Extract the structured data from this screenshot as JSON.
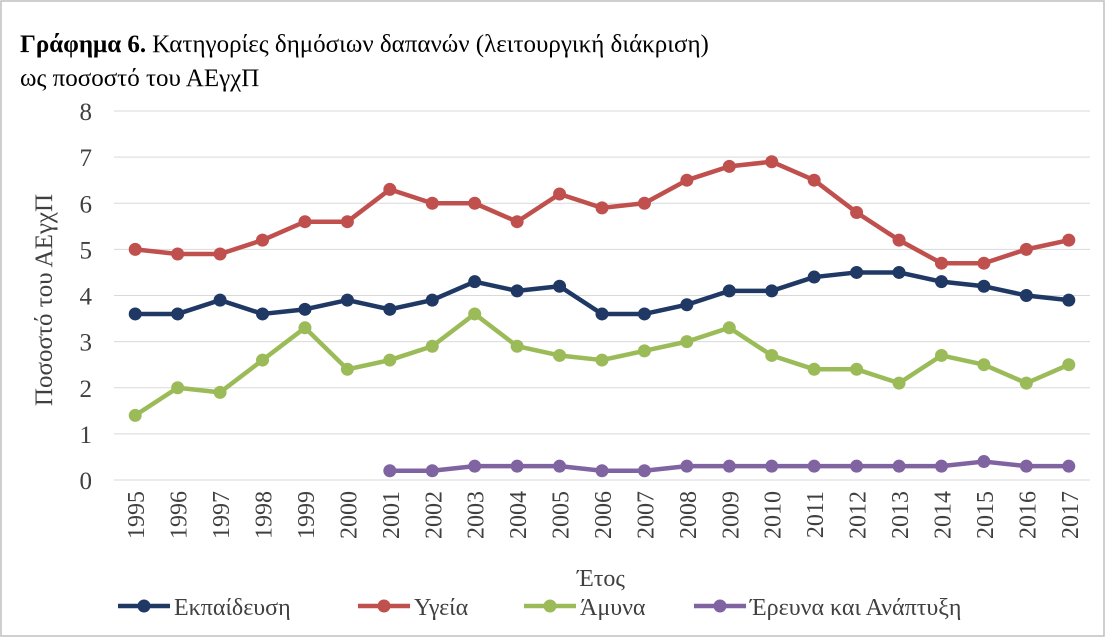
{
  "chart_data": {
    "type": "line",
    "title_label": "Γράφημα 6.",
    "title": "Κατηγορίες δημόσιων δαπανών (λειτουργική διάκριση)",
    "subtitle": "ως ποσοστό του ΑΕγχΠ",
    "x_label": "Έτος",
    "y_label": "Ποσοστό του ΑΕγχΠ",
    "categories": [
      "1995",
      "1996",
      "1997",
      "1998",
      "1999",
      "2000",
      "2001",
      "2002",
      "2003",
      "2004",
      "2005",
      "2006",
      "2007",
      "2008",
      "2009",
      "2010",
      "2011",
      "2012",
      "2013",
      "2014",
      "2015",
      "2016",
      "2017"
    ],
    "series": [
      {
        "name": "Εκπαίδευση",
        "color": "#1f3864",
        "values": [
          3.6,
          3.6,
          3.9,
          3.6,
          3.7,
          3.9,
          3.7,
          3.9,
          4.3,
          4.1,
          4.2,
          3.6,
          3.6,
          3.8,
          4.1,
          4.1,
          4.4,
          4.5,
          4.5,
          4.3,
          4.2,
          4.0,
          3.9
        ]
      },
      {
        "name": "Υγεία",
        "color": "#c0504d",
        "values": [
          5.0,
          4.9,
          4.9,
          5.2,
          5.6,
          5.6,
          6.3,
          6.0,
          6.0,
          5.6,
          6.2,
          5.9,
          6.0,
          6.5,
          6.8,
          6.9,
          6.5,
          5.8,
          5.2,
          4.7,
          4.7,
          5.0,
          5.2
        ]
      },
      {
        "name": "Άμυνα",
        "color": "#9bbb59",
        "values": [
          1.4,
          2.0,
          1.9,
          2.6,
          3.3,
          2.4,
          2.6,
          2.9,
          3.6,
          2.9,
          2.7,
          2.6,
          2.8,
          3.0,
          3.3,
          2.7,
          2.4,
          2.4,
          2.1,
          2.7,
          2.5,
          2.1,
          2.5
        ]
      },
      {
        "name": "Έρευνα και Ανάπτυξη",
        "color": "#8064a2",
        "values": [
          null,
          null,
          null,
          null,
          null,
          null,
          0.2,
          0.2,
          0.3,
          0.3,
          0.3,
          0.2,
          0.2,
          0.3,
          0.3,
          0.3,
          0.3,
          0.3,
          0.3,
          0.3,
          0.4,
          0.3,
          0.3
        ]
      }
    ],
    "ylim": [
      0,
      8
    ],
    "yticks": [
      0,
      1,
      2,
      3,
      4,
      5,
      6,
      7,
      8
    ],
    "grid": true,
    "legend": "bottom"
  }
}
